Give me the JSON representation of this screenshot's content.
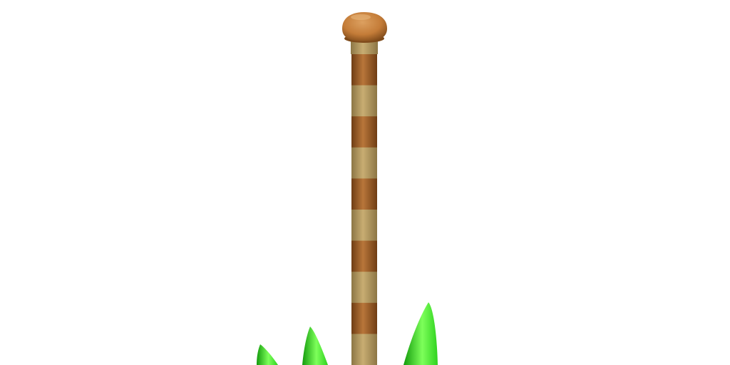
{
  "scene": {
    "background_color": "#ffffff",
    "pole": {
      "stripe_count": 10,
      "colors": {
        "tan_light": "#c8ad72",
        "tan": "#b09660",
        "tan_dark": "#8c7645",
        "brown_light": "#b8763a",
        "brown": "#9c5a22",
        "brown_dark": "#6f3d14"
      }
    },
    "cap": {
      "colors": {
        "highlight": "#dca060",
        "base": "#c47c38",
        "shadow": "#7e4a1a"
      }
    },
    "leaves": {
      "count": 4,
      "colors": {
        "highlight": "#7dff5a",
        "base": "#2fd21f",
        "shadow": "#139a0c"
      }
    }
  }
}
